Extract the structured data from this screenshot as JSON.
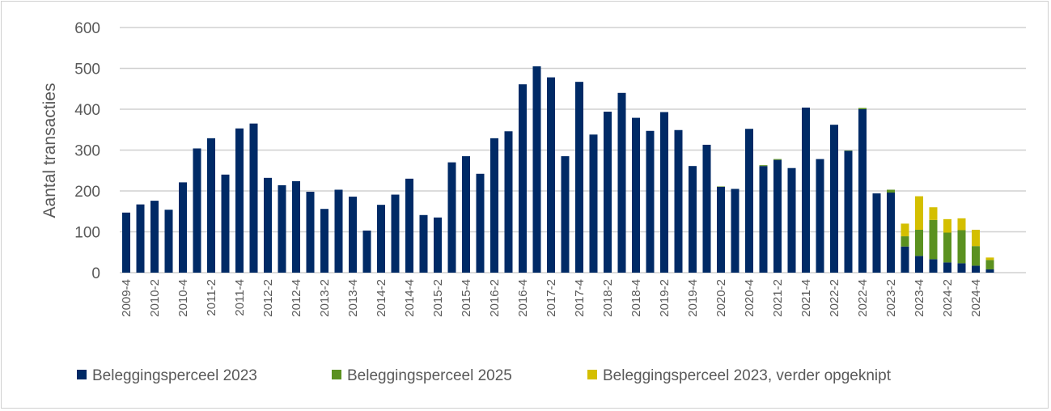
{
  "chart_data": {
    "type": "bar",
    "stacked": true,
    "title": "",
    "xlabel": "",
    "ylabel": "Aantal transacties",
    "ylim": [
      0,
      600
    ],
    "yticks": [
      0,
      100,
      200,
      300,
      400,
      500,
      600
    ],
    "grid": true,
    "legend_placement": "bottom",
    "categories": [
      "2009-4",
      "2010-1",
      "2010-2",
      "2010-3",
      "2010-4",
      "2011-1",
      "2011-2",
      "2011-3",
      "2011-4",
      "2012-1",
      "2012-2",
      "2012-3",
      "2012-4",
      "2013-1",
      "2013-2",
      "2013-3",
      "2013-4",
      "2014-1",
      "2014-2",
      "2014-3",
      "2014-4",
      "2015-1",
      "2015-2",
      "2015-3",
      "2015-4",
      "2016-1",
      "2016-2",
      "2016-3",
      "2016-4",
      "2017-1",
      "2017-2",
      "2017-3",
      "2017-4",
      "2018-1",
      "2018-2",
      "2018-3",
      "2018-4",
      "2019-1",
      "2019-2",
      "2019-3",
      "2019-4",
      "2020-1",
      "2020-2",
      "2020-3",
      "2020-4",
      "2021-1",
      "2021-2",
      "2021-3",
      "2021-4",
      "2022-1",
      "2022-2",
      "2022-3",
      "2022-4",
      "2023-1",
      "2023-2",
      "2023-3",
      "2023-4",
      "2024-1",
      "2024-2",
      "2024-3",
      "2024-4",
      "2025-1"
    ],
    "tick_labels_shown": [
      "2009-4",
      "2010-2",
      "2010-4",
      "2011-2",
      "2011-4",
      "2012-2",
      "2012-4",
      "2013-2",
      "2013-4",
      "2014-2",
      "2014-4",
      "2015-2",
      "2015-4",
      "2016-2",
      "2016-4",
      "2017-2",
      "2017-4",
      "2018-2",
      "2018-4",
      "2019-2",
      "2019-4",
      "2020-2",
      "2020-4",
      "2021-2",
      "2021-4",
      "2022-2",
      "2022-4",
      "2023-2",
      "2023-4",
      "2024-2",
      "2024-4"
    ],
    "series": [
      {
        "name": "Beleggingsperceel 2023",
        "color": "#002a66",
        "values": [
          147,
          167,
          176,
          154,
          221,
          304,
          329,
          240,
          353,
          365,
          232,
          214,
          224,
          198,
          156,
          203,
          186,
          103,
          166,
          191,
          230,
          141,
          135,
          270,
          285,
          242,
          329,
          346,
          461,
          505,
          478,
          285,
          467,
          338,
          394,
          440,
          379,
          347,
          393,
          349,
          261,
          313,
          210,
          205,
          352,
          261,
          276,
          256,
          404,
          278,
          362,
          298,
          400,
          194,
          196,
          64,
          41,
          33,
          25,
          23,
          17,
          8
        ]
      },
      {
        "name": "Beleggingsperceel 2025",
        "color": "#5b9120",
        "values": [
          0,
          0,
          0,
          0,
          0,
          0,
          0,
          0,
          0,
          0,
          0,
          0,
          0,
          0,
          0,
          0,
          0,
          0,
          0,
          0,
          0,
          0,
          0,
          0,
          0,
          0,
          0,
          0,
          0,
          0,
          0,
          0,
          0,
          0,
          0,
          0,
          0,
          0,
          0,
          0,
          0,
          0,
          1,
          0,
          0,
          2,
          2,
          0,
          0,
          0,
          0,
          1,
          3,
          0,
          7,
          25,
          64,
          96,
          73,
          81,
          48,
          23
        ]
      },
      {
        "name": "Beleggingsperceel 2023, verder opgeknipt",
        "color": "#d4bf00",
        "values": [
          0,
          0,
          0,
          0,
          0,
          0,
          0,
          0,
          0,
          0,
          0,
          0,
          0,
          0,
          0,
          0,
          0,
          0,
          0,
          0,
          0,
          0,
          0,
          0,
          0,
          0,
          0,
          0,
          0,
          0,
          0,
          0,
          0,
          0,
          0,
          0,
          0,
          0,
          0,
          0,
          0,
          0,
          0,
          0,
          0,
          0,
          0,
          0,
          0,
          0,
          0,
          0,
          0,
          0,
          0,
          31,
          82,
          31,
          33,
          29,
          40,
          6
        ]
      }
    ]
  }
}
